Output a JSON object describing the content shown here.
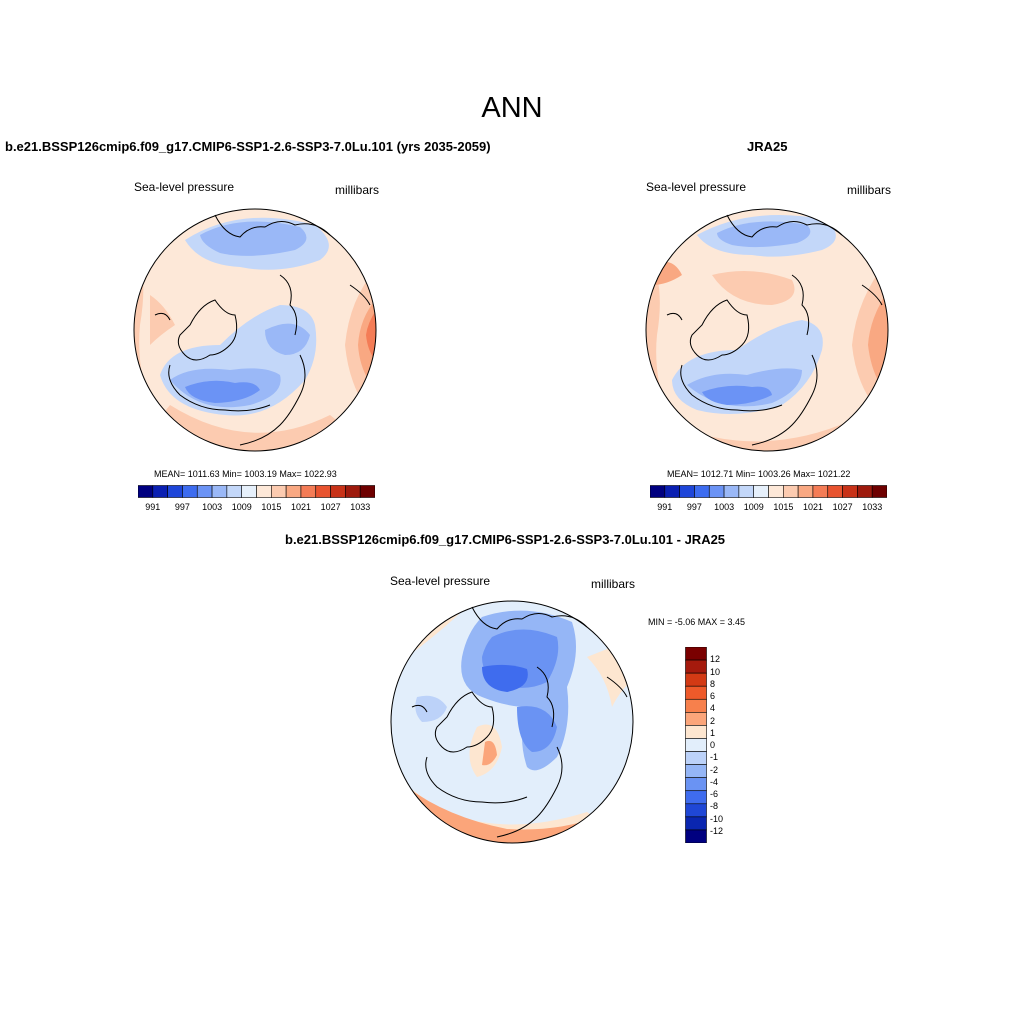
{
  "figure": {
    "title": "ANN"
  },
  "panels": [
    {
      "title": "b.e21.BSSP126cmip6.f09_g17.CMIP6-SSP1-2.6-SSP3-7.0Lu.101 (yrs 2035-2059)",
      "variable": "Sea-level pressure",
      "units": "millibars",
      "stats": "MEAN= 1011.63  Min= 1003.19  Max= 1022.93",
      "colorbar_ticks": [
        "991",
        "997",
        "1003",
        "1009",
        "1015",
        "1021",
        "1027",
        "1033"
      ]
    },
    {
      "title": "JRA25",
      "variable": "Sea-level pressure",
      "units": "millibars",
      "stats": "MEAN= 1012.71  Min= 1003.26  Max= 1021.22",
      "colorbar_ticks": [
        "991",
        "997",
        "1003",
        "1009",
        "1015",
        "1021",
        "1027",
        "1033"
      ]
    },
    {
      "title": "b.e21.BSSP126cmip6.f09_g17.CMIP6-SSP1-2.6-SSP3-7.0Lu.101 - JRA25",
      "variable": "Sea-level pressure",
      "units": "millibars",
      "stats": "MIN =  -5.06 MAX =   3.45",
      "colorbar_ticks": [
        "12",
        "10",
        "8",
        "6",
        "4",
        "2",
        "1",
        "0",
        "-1",
        "-2",
        "-4",
        "-6",
        "-8",
        "-10",
        "-12"
      ]
    }
  ],
  "colors": {
    "abs_scale": [
      "#000080",
      "#0a1fb2",
      "#1e46d9",
      "#3d6cf0",
      "#6b93f5",
      "#9ab8f7",
      "#c3d7f9",
      "#e6f0fb",
      "#fde8d8",
      "#fccbb0",
      "#f9a882",
      "#f47c56",
      "#e8532f",
      "#c83218",
      "#9e1a0d",
      "#6e0000"
    ],
    "diff_scale": [
      "#7a0000",
      "#a51a0d",
      "#d33a14",
      "#ee5a2a",
      "#f7804c",
      "#fba57a",
      "#fde6d0",
      "#e2eefb",
      "#bcd2f9",
      "#95b6f6",
      "#6a93f3",
      "#3f6cee",
      "#1f47d6",
      "#0a26b0",
      "#000080"
    ]
  }
}
